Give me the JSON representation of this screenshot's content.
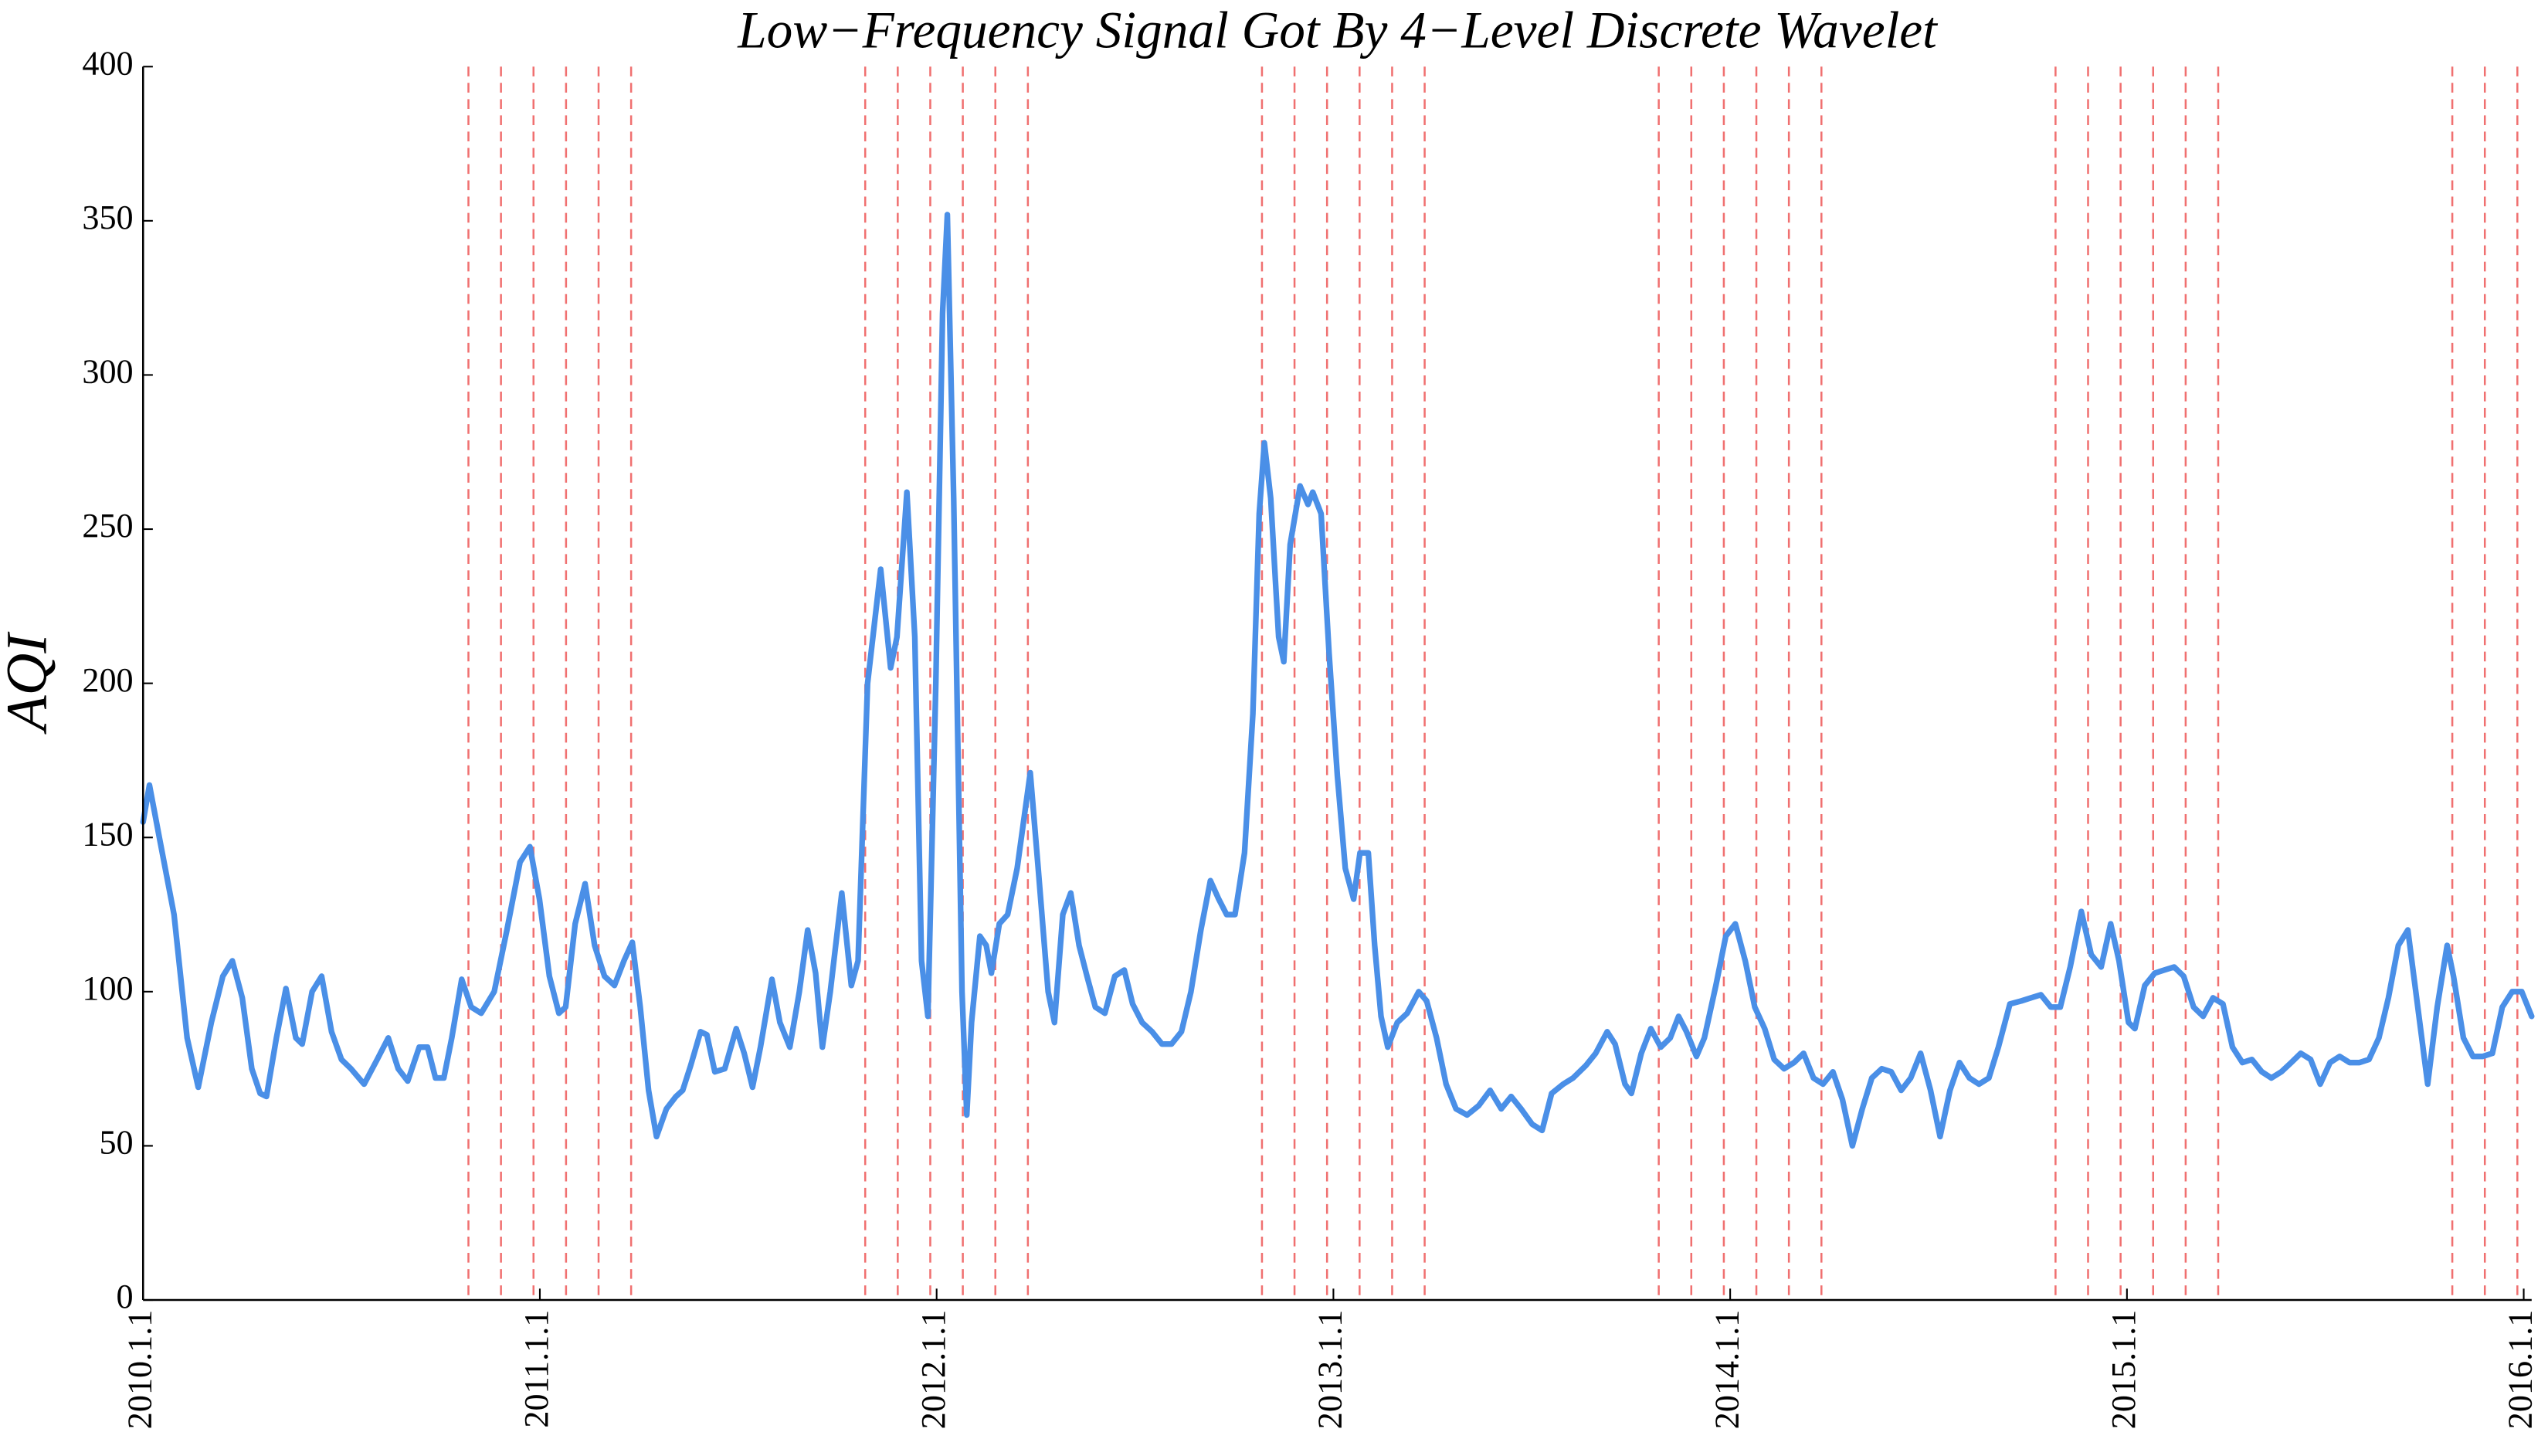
{
  "chart_data": {
    "type": "line",
    "title": "Low−Frequency Signal Got By 4−Level Discrete Wavelet",
    "y_label": "AQI",
    "color": "#4a8fe7",
    "x": [
      2010,
      2010.016,
      2010.041,
      2010.078,
      2010.111,
      2010.139,
      2010.172,
      2010.201,
      2010.225,
      2010.25,
      2010.274,
      2010.295,
      2010.311,
      2010.336,
      2010.36,
      2010.385,
      2010.401,
      2010.426,
      2010.45,
      2010.475,
      2010.5,
      2010.524,
      2010.557,
      2010.59,
      2010.618,
      2010.643,
      2010.667,
      2010.696,
      2010.717,
      2010.737,
      2010.758,
      2010.778,
      2010.803,
      2010.827,
      2010.852,
      2010.885,
      2010.917,
      2010.95,
      2010.975,
      2010.999,
      2011.024,
      2011.048,
      2011.065,
      2011.089,
      2011.114,
      2011.138,
      2011.163,
      2011.188,
      2011.212,
      2011.233,
      2011.253,
      2011.274,
      2011.294,
      2011.319,
      2011.343,
      2011.36,
      2011.38,
      2011.405,
      2011.421,
      2011.441,
      2011.466,
      2011.495,
      2011.515,
      2011.536,
      2011.556,
      2011.585,
      2011.605,
      2011.63,
      2011.654,
      2011.675,
      2011.695,
      2011.712,
      2011.732,
      2011.761,
      2011.785,
      2011.802,
      2011.826,
      2011.859,
      2011.884,
      2011.9,
      2011.925,
      2011.945,
      2011.962,
      2011.978,
      2011.998,
      2012.015,
      2012.027,
      2012.043,
      2012.064,
      2012.076,
      2012.088,
      2012.109,
      2012.125,
      2012.138,
      2012.158,
      2012.179,
      2012.203,
      2012.236,
      2012.256,
      2012.281,
      2012.297,
      2012.318,
      2012.338,
      2012.359,
      2012.379,
      2012.4,
      2012.424,
      2012.449,
      2012.473,
      2012.494,
      2012.518,
      2012.543,
      2012.568,
      2012.592,
      2012.617,
      2012.641,
      2012.666,
      2012.69,
      2012.711,
      2012.731,
      2012.752,
      2012.776,
      2012.797,
      2012.813,
      2012.826,
      2012.842,
      2012.862,
      2012.875,
      2012.891,
      2012.916,
      2012.936,
      2012.948,
      2012.969,
      2012.989,
      2013.01,
      2013.03,
      2013.051,
      2013.067,
      2013.088,
      2013.104,
      2013.12,
      2013.137,
      2013.161,
      2013.186,
      2013.215,
      2013.235,
      2013.26,
      2013.284,
      2013.309,
      2013.337,
      2013.366,
      2013.395,
      2013.423,
      2013.448,
      2013.473,
      2013.501,
      2013.526,
      2013.55,
      2013.579,
      2013.604,
      2013.636,
      2013.661,
      2013.69,
      2013.71,
      2013.735,
      2013.751,
      2013.776,
      2013.8,
      2013.825,
      2013.849,
      2013.87,
      2013.89,
      2013.915,
      2013.935,
      2013.964,
      2013.989,
      2014.013,
      2014.038,
      2014.062,
      2014.087,
      2014.111,
      2014.136,
      2014.161,
      2014.185,
      2014.21,
      2014.234,
      2014.259,
      2014.283,
      2014.308,
      2014.333,
      2014.357,
      2014.382,
      2014.406,
      2014.431,
      2014.455,
      2014.48,
      2014.505,
      2014.529,
      2014.554,
      2014.578,
      2014.603,
      2014.627,
      2014.652,
      2014.676,
      2014.705,
      2014.734,
      2014.758,
      2014.783,
      2014.808,
      2014.832,
      2014.857,
      2014.885,
      2014.91,
      2014.935,
      2014.959,
      2014.98,
      2015.004,
      2015.02,
      2015.045,
      2015.07,
      2015.094,
      2015.119,
      2015.143,
      2015.168,
      2015.192,
      2015.217,
      2015.242,
      2015.266,
      2015.291,
      2015.315,
      2015.34,
      2015.364,
      2015.389,
      2015.414,
      2015.438,
      2015.463,
      2015.487,
      2015.512,
      2015.536,
      2015.561,
      2015.586,
      2015.61,
      2015.635,
      2015.659,
      2015.684,
      2015.708,
      2015.733,
      2015.758,
      2015.782,
      2015.807,
      2015.823,
      2015.848,
      2015.872,
      2015.897,
      2015.921,
      2015.946,
      2015.971,
      2015.995,
      2016.02
    ],
    "values": [
      155,
      167,
      150,
      125,
      85,
      69,
      90,
      105,
      110,
      98,
      75,
      67,
      66,
      85,
      101,
      85,
      83,
      100,
      105,
      87,
      78,
      75,
      70,
      78,
      85,
      75,
      71,
      82,
      82,
      72,
      72,
      85,
      104,
      95,
      93,
      100,
      120,
      142,
      147,
      130,
      105,
      93,
      95,
      122,
      135,
      115,
      105,
      102,
      110,
      116,
      95,
      68,
      53,
      62,
      66,
      68,
      76,
      87,
      86,
      74,
      75,
      88,
      80,
      69,
      82,
      104,
      90,
      82,
      100,
      120,
      106,
      82,
      100,
      132,
      102,
      110,
      200,
      237,
      205,
      215,
      262,
      215,
      110,
      92,
      200,
      320,
      352,
      260,
      100,
      60,
      90,
      118,
      115,
      106,
      122,
      125,
      140,
      171,
      140,
      100,
      90,
      125,
      132,
      115,
      105,
      95,
      93,
      105,
      107,
      96,
      90,
      87,
      83,
      83,
      87,
      100,
      120,
      136,
      130,
      125,
      125,
      145,
      190,
      255,
      278,
      260,
      215,
      207,
      245,
      264,
      258,
      262,
      255,
      210,
      170,
      140,
      130,
      145,
      145,
      115,
      92,
      82,
      90,
      93,
      100,
      97,
      85,
      70,
      62,
      60,
      63,
      68,
      62,
      66,
      62,
      57,
      55,
      67,
      70,
      72,
      76,
      80,
      87,
      83,
      70,
      67,
      80,
      88,
      82,
      85,
      92,
      87,
      79,
      85,
      102,
      118,
      122,
      110,
      95,
      88,
      78,
      75,
      77,
      80,
      72,
      70,
      74,
      65,
      50,
      62,
      72,
      75,
      74,
      68,
      72,
      80,
      68,
      53,
      68,
      77,
      72,
      70,
      72,
      82,
      96,
      97,
      98,
      99,
      95,
      95,
      108,
      126,
      112,
      108,
      122,
      110,
      90,
      88,
      102,
      106,
      107,
      108,
      105,
      95,
      92,
      98,
      96,
      82,
      77,
      78,
      74,
      72,
      74,
      77,
      80,
      78,
      70,
      77,
      79,
      77,
      77,
      78,
      85,
      98,
      115,
      120,
      95,
      70,
      95,
      115,
      105,
      85,
      79,
      79,
      80,
      95,
      100,
      100,
      92
    ],
    "vlines": [
      2010.82,
      2010.902,
      2010.984,
      2011.066,
      2011.148,
      2011.23,
      2011.82,
      2011.902,
      2011.984,
      2012.066,
      2012.148,
      2012.23,
      2012.82,
      2012.902,
      2012.984,
      2013.066,
      2013.148,
      2013.23,
      2013.82,
      2013.902,
      2013.984,
      2014.066,
      2014.148,
      2014.23,
      2014.82,
      2014.902,
      2014.984,
      2015.066,
      2015.148,
      2015.23,
      2015.82,
      2015.902,
      2015.984
    ],
    "vline_color": "#f07070",
    "xlim": [
      2010,
      2016.02
    ],
    "xticks": [
      {
        "value": 2010,
        "label": "2010.1.1"
      },
      {
        "value": 2011,
        "label": "2011.1.1"
      },
      {
        "value": 2012,
        "label": "2012.1.1"
      },
      {
        "value": 2013,
        "label": "2013.1.1"
      },
      {
        "value": 2014,
        "label": "2014.1.1"
      },
      {
        "value": 2015,
        "label": "2015.1.1"
      },
      {
        "value": 2016,
        "label": "2016.1.1"
      }
    ],
    "ylim": [
      0,
      400
    ],
    "yticks": [
      0,
      50,
      100,
      150,
      200,
      250,
      300,
      350,
      400
    ]
  }
}
